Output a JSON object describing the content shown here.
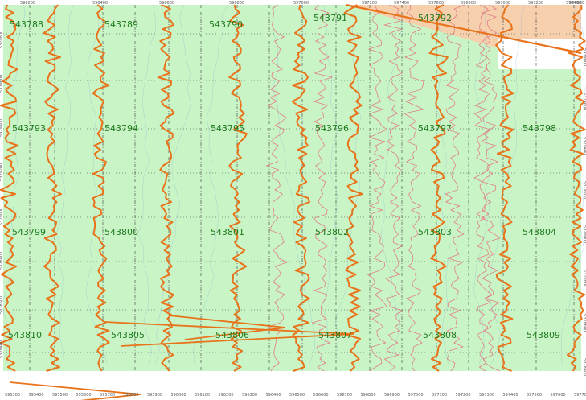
{
  "colors": {
    "land": "#c9f5c6",
    "zone": "#f6d0ad",
    "zone_edge": "#e8731a",
    "trace_primary": "#e8731a",
    "trace_secondary": "#e07f86",
    "grid": "#3a3a3a",
    "contour": "#8fb8d6",
    "label": "#1f7a1f",
    "axis_text": "#555555",
    "white_gap": "#ffffff"
  },
  "map": {
    "top_axis_labels": [
      "596200",
      "596400",
      "596600",
      "596800",
      "597000",
      "597200",
      "597400",
      "597600",
      "596800",
      "597000",
      "597200",
      "597400",
      "597600"
    ],
    "bottom_axis_labels": [
      "595300",
      "595400",
      "595500",
      "595600",
      "595700",
      "595800",
      "595900",
      "596000",
      "596100",
      "596200",
      "596300",
      "596400",
      "596500",
      "596600",
      "596700",
      "596800",
      "596900",
      "597000",
      "597100",
      "597200",
      "597300",
      "597400",
      "597500",
      "597600",
      "597700"
    ],
    "left_axis_labels": [
      "5379800",
      "5379600",
      "5379400",
      "5379200",
      "5379000",
      "5378800",
      "5378600",
      "5378400"
    ],
    "right_axis_labels": [
      "5379800",
      "5379600",
      "5379400",
      "5379200",
      "5379000",
      "5378800",
      "5378600",
      "5378400"
    ],
    "tiles": [
      {
        "label": "543788",
        "col": 0,
        "row": 0
      },
      {
        "label": "543789",
        "col": 1,
        "row": 0
      },
      {
        "label": "543790",
        "col": 2,
        "row": 0
      },
      {
        "label": "543791",
        "col": 3,
        "row": 0
      },
      {
        "label": "543792",
        "col": 4,
        "row": 0
      },
      {
        "label": "543793",
        "col": 0,
        "row": 1
      },
      {
        "label": "543794",
        "col": 1,
        "row": 1
      },
      {
        "label": "543795",
        "col": 2,
        "row": 1
      },
      {
        "label": "543796",
        "col": 3,
        "row": 1
      },
      {
        "label": "543797",
        "col": 4,
        "row": 1
      },
      {
        "label": "543798",
        "col": 5,
        "row": 1
      },
      {
        "label": "543799",
        "col": 0,
        "row": 2
      },
      {
        "label": "543800",
        "col": 1,
        "row": 2
      },
      {
        "label": "543801",
        "col": 2,
        "row": 2
      },
      {
        "label": "543802",
        "col": 3,
        "row": 2
      },
      {
        "label": "543803",
        "col": 4,
        "row": 2
      },
      {
        "label": "543804",
        "col": 5,
        "row": 2
      },
      {
        "label": "543810",
        "col": 0,
        "row": 3
      },
      {
        "label": "543805",
        "col": 1,
        "row": 3
      },
      {
        "label": "543806",
        "col": 2,
        "row": 3
      },
      {
        "label": "543807",
        "col": 3,
        "row": 3
      },
      {
        "label": "543808",
        "col": 4,
        "row": 3
      },
      {
        "label": "543809",
        "col": 5,
        "row": 3
      }
    ]
  }
}
